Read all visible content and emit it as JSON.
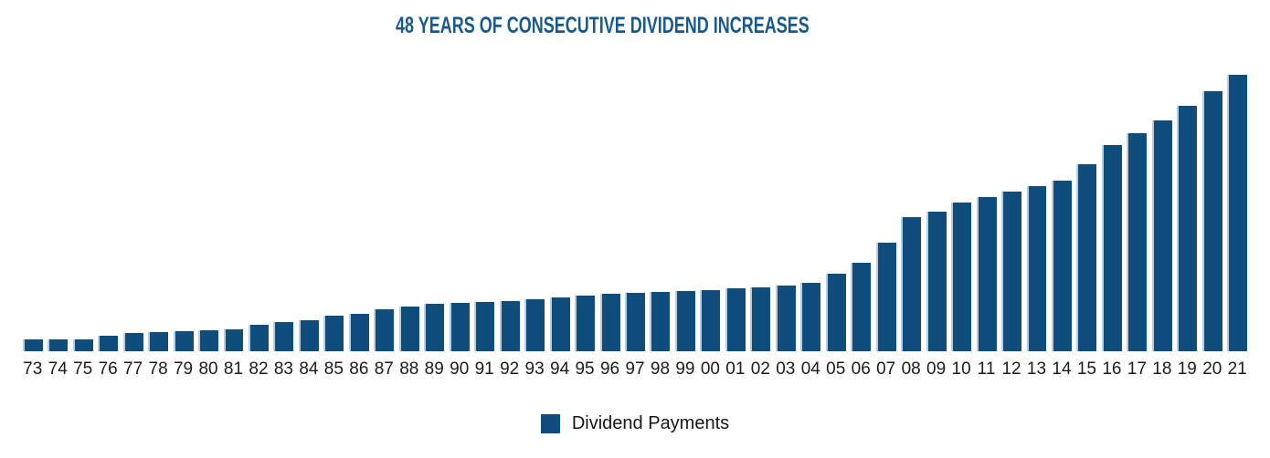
{
  "page": {
    "background": "#ffffff"
  },
  "title": {
    "text": "48 YEARS OF CONSECUTIVE DIVIDEND INCREASES",
    "color": "#195a8d"
  },
  "legend": {
    "label": "Dividend Payments",
    "swatch_color": "#0f4e7c",
    "text_color": "#161616"
  },
  "chart_data": {
    "type": "bar",
    "title": "48 YEARS OF CONSECUTIVE DIVIDEND INCREASES",
    "xlabel": "",
    "ylabel": "",
    "categories": [
      "73",
      "74",
      "75",
      "76",
      "77",
      "78",
      "79",
      "80",
      "81",
      "82",
      "83",
      "84",
      "85",
      "86",
      "87",
      "88",
      "89",
      "90",
      "91",
      "92",
      "93",
      "94",
      "95",
      "96",
      "97",
      "98",
      "99",
      "00",
      "01",
      "02",
      "03",
      "04",
      "05",
      "06",
      "07",
      "08",
      "09",
      "10",
      "11",
      "12",
      "13",
      "14",
      "15",
      "16",
      "17",
      "18",
      "19",
      "20",
      "21"
    ],
    "series": [
      {
        "name": "Dividend Payments",
        "values": [
          13,
          13,
          13,
          17,
          20,
          21,
          22,
          23,
          24,
          29,
          32,
          34,
          39,
          41,
          46,
          49,
          52,
          53,
          54,
          55,
          57,
          59,
          61,
          63,
          64,
          65,
          66,
          67,
          69,
          70,
          72,
          75,
          85,
          97,
          119,
          147,
          153,
          163,
          169,
          175,
          181,
          187,
          205,
          226,
          239,
          253,
          269,
          285,
          303
        ]
      }
    ],
    "value_scale": "relative bar height in px (chart shows no y-axis or value labels)",
    "ylim": [
      0,
      320
    ],
    "grid": false,
    "legend_position": "bottom",
    "bar_color": "#0f4e7c",
    "tick_label_color": "#1c1c1c"
  }
}
